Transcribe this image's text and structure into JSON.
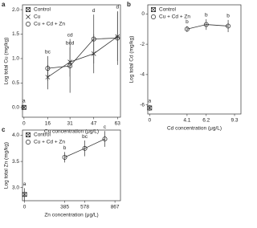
{
  "chart_data": [
    {
      "type": "line",
      "panel": "a",
      "x_label": "Cu concentration (μg/L)",
      "y_label": "Log total Cu (mg/kg)",
      "xlim": [
        -1,
        65
      ],
      "xticks": [
        0,
        16,
        31,
        47,
        63
      ],
      "ylim": [
        -0.2,
        2.1
      ],
      "yticks": [
        {
          "value": 0,
          "label": "0.0"
        },
        {
          "value": 0.5,
          "label": "0.5"
        },
        {
          "value": 1,
          "label": "1.0"
        },
        {
          "value": 1.5,
          "label": "1.5"
        },
        {
          "value": 2,
          "label": "2.0"
        }
      ],
      "series": [
        {
          "name": "Control",
          "marker": "boxx",
          "color": "#222222",
          "x": [
            0
          ],
          "values": [
            0
          ],
          "errors": [
            0.05
          ],
          "letters": [
            "a"
          ]
        },
        {
          "name": "Cu",
          "marker": "x",
          "color": "#222222",
          "x": [
            16,
            31,
            47,
            63
          ],
          "values": [
            0.62,
            0.93,
            1.1,
            1.45
          ],
          "errors": [
            0.25,
            0.3,
            0.4,
            0.5
          ],
          "letters": [
            null,
            "bcd",
            null,
            null
          ]
        },
        {
          "name": "Cu + Cd + Zn",
          "marker": "circle",
          "color": "#222222",
          "x": [
            16,
            31,
            47,
            63
          ],
          "values": [
            0.8,
            0.85,
            1.4,
            1.42
          ],
          "errors": [
            0.25,
            0.55,
            0.5,
            0.55
          ],
          "letters": [
            "bc",
            "cd",
            "d",
            "d"
          ]
        }
      ]
    },
    {
      "type": "line",
      "panel": "b",
      "x_label": "Cd concentration (μg/L)",
      "y_label": "Log total Cd (mg/kg)",
      "xlim": [
        -0.2,
        10
      ],
      "xticks": [
        0,
        4.1,
        6.2,
        9.3
      ],
      "ylim": [
        -6.6,
        0.6
      ],
      "yticks": [
        -6,
        -4,
        -2,
        0
      ],
      "series": [
        {
          "name": "Control",
          "marker": "boxx",
          "color": "#222222",
          "x": [
            0
          ],
          "values": [
            -6.2
          ],
          "errors": [
            0.2
          ],
          "letters": [
            "a"
          ]
        },
        {
          "name": "Cu + Cd + Zn",
          "marker": "circle",
          "color": "#222222",
          "x": [
            4.1,
            6.2,
            8.6
          ],
          "values": [
            -1,
            -0.7,
            -0.8
          ],
          "errors": [
            0.2,
            0.35,
            0.4
          ],
          "letters": [
            "b",
            "b",
            "b"
          ]
        }
      ]
    },
    {
      "type": "line",
      "panel": "c",
      "x_label": "Zn concentration (μg/L)",
      "y_label": "Log total Zn (mg/kg)",
      "xlim": [
        -20,
        920
      ],
      "xticks": [
        0,
        385,
        578,
        867
      ],
      "ylim": [
        2.75,
        4.1
      ],
      "yticks": [
        {
          "value": 3,
          "label": "3.0"
        },
        {
          "value": 3.5,
          "label": "3.5"
        },
        {
          "value": 4,
          "label": "4.0"
        }
      ],
      "series": [
        {
          "name": "Control",
          "marker": "boxx",
          "color": "#222222",
          "x": [
            0
          ],
          "values": [
            2.87
          ],
          "errors": [
            0.12
          ],
          "letters": [
            "a"
          ]
        },
        {
          "name": "Cu + Cd + Zn",
          "marker": "circle",
          "color": "#222222",
          "x": [
            385,
            578,
            770
          ],
          "values": [
            3.58,
            3.75,
            3.93
          ],
          "errors": [
            0.1,
            0.15,
            0.15
          ],
          "letters": [
            "b",
            "bc",
            "c"
          ]
        }
      ]
    }
  ]
}
